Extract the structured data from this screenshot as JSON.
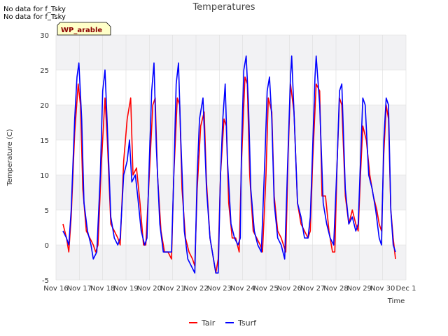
{
  "notes": [
    "No data for f_Tsky",
    "No data for f_Tsky"
  ],
  "badge": "WP_arable",
  "colors": {
    "Tair": "#ff0000",
    "Tsurf": "#0000ff",
    "band": "#f2f2f4",
    "grid": "#dddddd"
  },
  "chart_data": {
    "type": "line",
    "title": "Temperatures",
    "xlabel": "Time",
    "ylabel": "Temperature (C)",
    "ylim": [
      -5,
      30
    ],
    "xlim": [
      16,
      31
    ],
    "yticks": [
      -5,
      0,
      5,
      10,
      15,
      20,
      25,
      30
    ],
    "xticks": [
      {
        "v": 16,
        "label": "Nov 16"
      },
      {
        "v": 17,
        "label": "Nov 17"
      },
      {
        "v": 18,
        "label": "Nov 18"
      },
      {
        "v": 19,
        "label": "Nov 19"
      },
      {
        "v": 20,
        "label": "Nov 20"
      },
      {
        "v": 21,
        "label": "Nov 21"
      },
      {
        "v": 22,
        "label": "Nov 22"
      },
      {
        "v": 23,
        "label": "Nov 23"
      },
      {
        "v": 24,
        "label": "Nov 24"
      },
      {
        "v": 25,
        "label": "Nov 25"
      },
      {
        "v": 26,
        "label": "Nov 26"
      },
      {
        "v": 27,
        "label": "Nov 27"
      },
      {
        "v": 28,
        "label": "Nov 28"
      },
      {
        "v": 29,
        "label": "Nov 29"
      },
      {
        "v": 30,
        "label": "Nov 30"
      },
      {
        "v": 31,
        "label": "Dec 1"
      }
    ],
    "series": [
      {
        "name": "Tair",
        "color": "#ff0000",
        "points": [
          [
            16.3,
            3
          ],
          [
            16.45,
            1
          ],
          [
            16.55,
            -1
          ],
          [
            16.65,
            4
          ],
          [
            16.8,
            16
          ],
          [
            16.95,
            23
          ],
          [
            17.05,
            20
          ],
          [
            17.15,
            8
          ],
          [
            17.3,
            2
          ],
          [
            17.45,
            1
          ],
          [
            17.6,
            0
          ],
          [
            17.7,
            -1
          ],
          [
            17.8,
            0
          ],
          [
            17.95,
            12
          ],
          [
            18.1,
            21
          ],
          [
            18.2,
            15
          ],
          [
            18.35,
            3
          ],
          [
            18.5,
            2
          ],
          [
            18.65,
            1
          ],
          [
            18.75,
            0
          ],
          [
            18.9,
            12
          ],
          [
            19.05,
            18
          ],
          [
            19.2,
            21
          ],
          [
            19.3,
            10
          ],
          [
            19.45,
            11
          ],
          [
            19.6,
            6
          ],
          [
            19.75,
            0
          ],
          [
            19.85,
            0
          ],
          [
            20.0,
            10
          ],
          [
            20.15,
            20
          ],
          [
            20.25,
            21
          ],
          [
            20.35,
            10
          ],
          [
            20.5,
            2
          ],
          [
            20.65,
            -1
          ],
          [
            20.8,
            -1
          ],
          [
            20.95,
            -2
          ],
          [
            21.05,
            10
          ],
          [
            21.2,
            21
          ],
          [
            21.3,
            20
          ],
          [
            21.4,
            8
          ],
          [
            21.55,
            1
          ],
          [
            21.7,
            -1
          ],
          [
            21.85,
            -2
          ],
          [
            21.95,
            -3
          ],
          [
            22.05,
            8
          ],
          [
            22.2,
            17
          ],
          [
            22.35,
            19
          ],
          [
            22.45,
            9
          ],
          [
            22.6,
            1
          ],
          [
            22.75,
            -2
          ],
          [
            22.85,
            -4
          ],
          [
            22.95,
            -2
          ],
          [
            23.05,
            10
          ],
          [
            23.2,
            18
          ],
          [
            23.3,
            17
          ],
          [
            23.4,
            6
          ],
          [
            23.55,
            1
          ],
          [
            23.7,
            1
          ],
          [
            23.85,
            -1
          ],
          [
            23.95,
            12
          ],
          [
            24.1,
            24
          ],
          [
            24.2,
            23
          ],
          [
            24.3,
            10
          ],
          [
            24.45,
            2
          ],
          [
            24.6,
            1
          ],
          [
            24.75,
            0
          ],
          [
            24.85,
            -1
          ],
          [
            25.0,
            10
          ],
          [
            25.1,
            21
          ],
          [
            25.25,
            19
          ],
          [
            25.35,
            7
          ],
          [
            25.5,
            2
          ],
          [
            25.65,
            1
          ],
          [
            25.75,
            0
          ],
          [
            25.85,
            -1
          ],
          [
            25.95,
            13
          ],
          [
            26.05,
            23
          ],
          [
            26.2,
            19
          ],
          [
            26.35,
            6
          ],
          [
            26.5,
            3
          ],
          [
            26.65,
            2
          ],
          [
            26.8,
            1
          ],
          [
            26.9,
            2
          ],
          [
            27.0,
            12
          ],
          [
            27.15,
            23
          ],
          [
            27.3,
            22
          ],
          [
            27.4,
            7
          ],
          [
            27.55,
            7
          ],
          [
            27.7,
            2
          ],
          [
            27.85,
            -1
          ],
          [
            27.95,
            -1
          ],
          [
            28.05,
            12
          ],
          [
            28.15,
            21
          ],
          [
            28.25,
            20
          ],
          [
            28.4,
            7
          ],
          [
            28.55,
            3
          ],
          [
            28.7,
            5
          ],
          [
            28.85,
            3
          ],
          [
            28.95,
            2
          ],
          [
            29.05,
            10
          ],
          [
            29.15,
            17
          ],
          [
            29.3,
            15
          ],
          [
            29.45,
            10
          ],
          [
            29.6,
            7
          ],
          [
            29.75,
            5
          ],
          [
            29.85,
            3
          ],
          [
            29.95,
            2
          ],
          [
            30.05,
            13
          ],
          [
            30.15,
            20
          ],
          [
            30.25,
            18
          ],
          [
            30.35,
            5
          ],
          [
            30.45,
            1
          ],
          [
            30.55,
            -2
          ]
        ]
      },
      {
        "name": "Tsurf",
        "color": "#0000ff",
        "points": [
          [
            16.3,
            2
          ],
          [
            16.45,
            1
          ],
          [
            16.55,
            0
          ],
          [
            16.65,
            5
          ],
          [
            16.8,
            18
          ],
          [
            16.9,
            24
          ],
          [
            16.98,
            26
          ],
          [
            17.1,
            18
          ],
          [
            17.2,
            6
          ],
          [
            17.35,
            2
          ],
          [
            17.5,
            0
          ],
          [
            17.6,
            -2
          ],
          [
            17.75,
            -1
          ],
          [
            17.9,
            10
          ],
          [
            18.0,
            22
          ],
          [
            18.1,
            25
          ],
          [
            18.2,
            17
          ],
          [
            18.35,
            4
          ],
          [
            18.5,
            1
          ],
          [
            18.65,
            0
          ],
          [
            18.75,
            1
          ],
          [
            18.9,
            10
          ],
          [
            19.05,
            12
          ],
          [
            19.15,
            15
          ],
          [
            19.25,
            9
          ],
          [
            19.4,
            10
          ],
          [
            19.5,
            7
          ],
          [
            19.65,
            2
          ],
          [
            19.8,
            0
          ],
          [
            19.9,
            1
          ],
          [
            20.0,
            12
          ],
          [
            20.1,
            22
          ],
          [
            20.2,
            26
          ],
          [
            20.3,
            14
          ],
          [
            20.45,
            3
          ],
          [
            20.6,
            -1
          ],
          [
            20.75,
            -1
          ],
          [
            20.95,
            -1
          ],
          [
            21.05,
            10
          ],
          [
            21.15,
            23
          ],
          [
            21.25,
            26
          ],
          [
            21.35,
            15
          ],
          [
            21.5,
            2
          ],
          [
            21.65,
            -2
          ],
          [
            21.8,
            -3
          ],
          [
            21.95,
            -4
          ],
          [
            22.05,
            10
          ],
          [
            22.15,
            18
          ],
          [
            22.3,
            21
          ],
          [
            22.45,
            8
          ],
          [
            22.6,
            1
          ],
          [
            22.75,
            -2
          ],
          [
            22.85,
            -4
          ],
          [
            22.95,
            -4
          ],
          [
            23.05,
            10
          ],
          [
            23.15,
            18
          ],
          [
            23.25,
            23
          ],
          [
            23.35,
            12
          ],
          [
            23.5,
            3
          ],
          [
            23.65,
            1
          ],
          [
            23.8,
            0
          ],
          [
            23.9,
            1
          ],
          [
            23.95,
            14
          ],
          [
            24.05,
            25
          ],
          [
            24.15,
            27
          ],
          [
            24.25,
            20
          ],
          [
            24.35,
            8
          ],
          [
            24.5,
            2
          ],
          [
            24.65,
            0
          ],
          [
            24.8,
            -1
          ],
          [
            24.95,
            12
          ],
          [
            25.05,
            22
          ],
          [
            25.15,
            24
          ],
          [
            25.25,
            18
          ],
          [
            25.35,
            6
          ],
          [
            25.5,
            1
          ],
          [
            25.65,
            0
          ],
          [
            25.8,
            -2
          ],
          [
            25.95,
            14
          ],
          [
            26.05,
            24
          ],
          [
            26.1,
            27
          ],
          [
            26.2,
            19
          ],
          [
            26.35,
            6
          ],
          [
            26.5,
            4
          ],
          [
            26.65,
            1
          ],
          [
            26.8,
            1
          ],
          [
            26.9,
            4
          ],
          [
            27.0,
            14
          ],
          [
            27.1,
            24
          ],
          [
            27.15,
            27
          ],
          [
            27.3,
            20
          ],
          [
            27.45,
            6
          ],
          [
            27.6,
            3
          ],
          [
            27.75,
            1
          ],
          [
            27.9,
            0
          ],
          [
            28.05,
            12
          ],
          [
            28.15,
            22
          ],
          [
            28.25,
            23
          ],
          [
            28.4,
            8
          ],
          [
            28.55,
            3
          ],
          [
            28.7,
            4
          ],
          [
            28.85,
            2
          ],
          [
            28.95,
            3
          ],
          [
            29.05,
            12
          ],
          [
            29.15,
            21
          ],
          [
            29.25,
            20
          ],
          [
            29.4,
            10
          ],
          [
            29.55,
            8
          ],
          [
            29.7,
            5
          ],
          [
            29.85,
            1
          ],
          [
            29.95,
            0
          ],
          [
            30.05,
            15
          ],
          [
            30.15,
            21
          ],
          [
            30.25,
            20
          ],
          [
            30.35,
            5
          ],
          [
            30.45,
            0
          ],
          [
            30.55,
            -1
          ]
        ]
      }
    ]
  }
}
